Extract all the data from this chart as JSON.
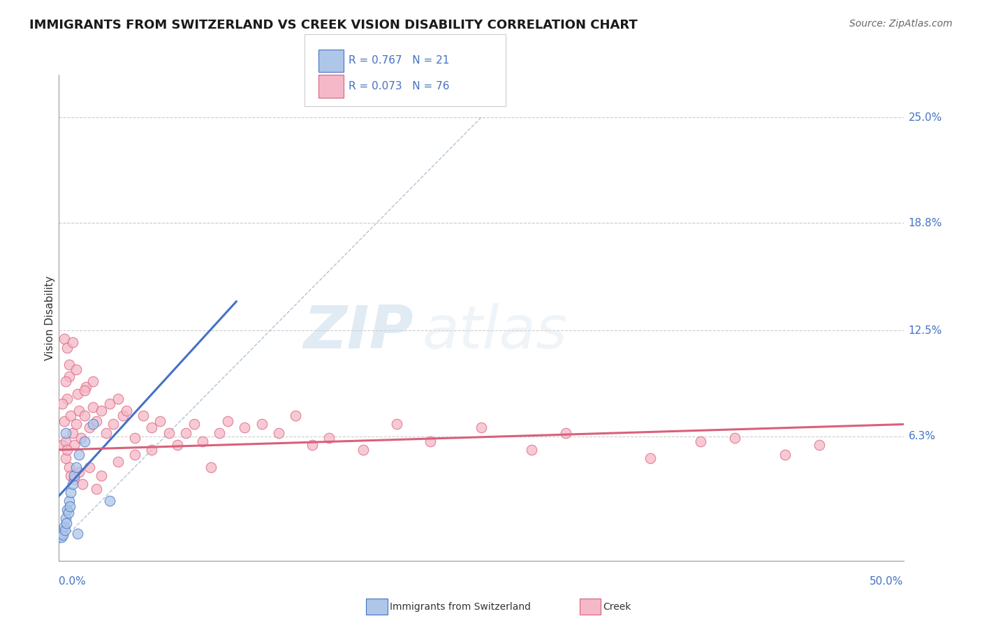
{
  "title": "IMMIGRANTS FROM SWITZERLAND VS CREEK VISION DISABILITY CORRELATION CHART",
  "source": "Source: ZipAtlas.com",
  "ylabel": "Vision Disability",
  "y_tick_labels": [
    "6.3%",
    "12.5%",
    "18.8%",
    "25.0%"
  ],
  "y_tick_values": [
    6.3,
    12.5,
    18.8,
    25.0
  ],
  "x_range": [
    0.0,
    50.0
  ],
  "y_range": [
    -1.0,
    27.5
  ],
  "color_blue_fill": "#aec6e8",
  "color_pink_fill": "#f5b8c8",
  "color_blue_line": "#4472c4",
  "color_pink_line": "#d9607a",
  "color_dashed": "#b0c4d8",
  "title_color": "#1a1a1a",
  "source_color": "#666666",
  "axis_label_color": "#4472c4",
  "background_color": "#ffffff",
  "watermark_zip": "ZIP",
  "watermark_atlas": "atlas",
  "swiss_line_x": [
    0.0,
    10.5
  ],
  "swiss_line_y": [
    2.8,
    14.2
  ],
  "creek_line_x": [
    0.0,
    50.0
  ],
  "creek_line_y": [
    5.5,
    7.0
  ],
  "dash_line_x": [
    0.0,
    25.0
  ],
  "dash_line_y": [
    0.0,
    25.0
  ],
  "swiss_points": [
    [
      0.15,
      0.4
    ],
    [
      0.2,
      0.6
    ],
    [
      0.25,
      0.5
    ],
    [
      0.3,
      1.0
    ],
    [
      0.35,
      0.8
    ],
    [
      0.4,
      1.5
    ],
    [
      0.45,
      1.2
    ],
    [
      0.5,
      2.0
    ],
    [
      0.55,
      1.8
    ],
    [
      0.6,
      2.5
    ],
    [
      0.65,
      2.2
    ],
    [
      0.7,
      3.0
    ],
    [
      0.8,
      3.5
    ],
    [
      0.9,
      4.0
    ],
    [
      1.0,
      4.5
    ],
    [
      1.2,
      5.2
    ],
    [
      1.5,
      6.0
    ],
    [
      2.0,
      7.0
    ],
    [
      3.0,
      2.5
    ],
    [
      1.1,
      0.6
    ],
    [
      0.4,
      6.5
    ]
  ],
  "creek_points": [
    [
      0.2,
      5.8
    ],
    [
      0.3,
      7.2
    ],
    [
      0.4,
      6.0
    ],
    [
      0.5,
      8.5
    ],
    [
      0.6,
      9.8
    ],
    [
      0.7,
      7.5
    ],
    [
      0.8,
      6.5
    ],
    [
      0.9,
      5.8
    ],
    [
      1.0,
      7.0
    ],
    [
      1.1,
      8.8
    ],
    [
      1.2,
      7.8
    ],
    [
      1.3,
      6.2
    ],
    [
      1.5,
      7.5
    ],
    [
      1.6,
      9.2
    ],
    [
      1.8,
      6.8
    ],
    [
      2.0,
      8.0
    ],
    [
      2.2,
      7.2
    ],
    [
      2.5,
      7.8
    ],
    [
      2.8,
      6.5
    ],
    [
      3.0,
      8.2
    ],
    [
      3.2,
      7.0
    ],
    [
      3.5,
      8.5
    ],
    [
      3.8,
      7.5
    ],
    [
      4.0,
      7.8
    ],
    [
      4.5,
      6.2
    ],
    [
      5.0,
      7.5
    ],
    [
      5.5,
      6.8
    ],
    [
      6.0,
      7.2
    ],
    [
      6.5,
      6.5
    ],
    [
      7.0,
      5.8
    ],
    [
      7.5,
      6.5
    ],
    [
      8.0,
      7.0
    ],
    [
      8.5,
      6.0
    ],
    [
      9.0,
      4.5
    ],
    [
      9.5,
      6.5
    ],
    [
      10.0,
      7.2
    ],
    [
      11.0,
      6.8
    ],
    [
      12.0,
      7.0
    ],
    [
      13.0,
      6.5
    ],
    [
      14.0,
      7.5
    ],
    [
      15.0,
      5.8
    ],
    [
      16.0,
      6.2
    ],
    [
      18.0,
      5.5
    ],
    [
      20.0,
      7.0
    ],
    [
      22.0,
      6.0
    ],
    [
      25.0,
      6.8
    ],
    [
      28.0,
      5.5
    ],
    [
      30.0,
      6.5
    ],
    [
      35.0,
      5.0
    ],
    [
      38.0,
      6.0
    ],
    [
      40.0,
      6.2
    ],
    [
      43.0,
      5.2
    ],
    [
      45.0,
      5.8
    ],
    [
      0.3,
      12.0
    ],
    [
      0.5,
      11.5
    ],
    [
      0.6,
      10.5
    ],
    [
      0.4,
      9.5
    ],
    [
      1.0,
      10.2
    ],
    [
      0.8,
      11.8
    ],
    [
      0.2,
      8.2
    ],
    [
      1.5,
      9.0
    ],
    [
      2.0,
      9.5
    ],
    [
      0.6,
      4.5
    ],
    [
      0.7,
      4.0
    ],
    [
      1.2,
      4.2
    ],
    [
      1.8,
      4.5
    ],
    [
      2.5,
      4.0
    ],
    [
      3.5,
      4.8
    ],
    [
      0.9,
      3.8
    ],
    [
      1.4,
      3.5
    ],
    [
      2.2,
      3.2
    ],
    [
      0.4,
      5.0
    ],
    [
      0.5,
      5.5
    ],
    [
      4.5,
      5.2
    ],
    [
      5.5,
      5.5
    ]
  ]
}
